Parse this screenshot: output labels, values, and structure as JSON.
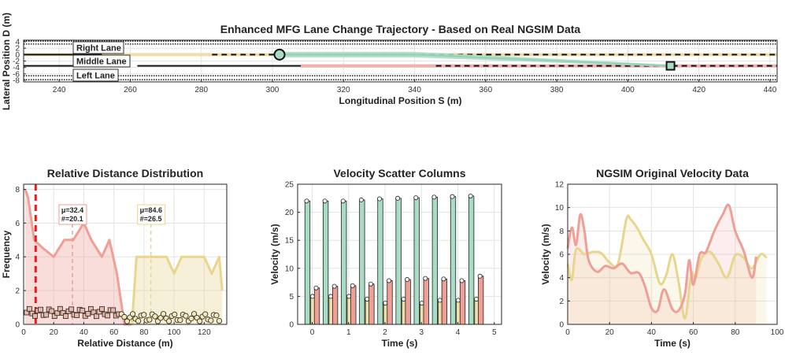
{
  "chart_data": [
    {
      "id": "traj",
      "type": "line",
      "title": "Enhanced MFG Lane Change Trajectory - Based on Real NGSIM Data",
      "xlabel": "Longitudinal Position S (m)",
      "ylabel": "Lateral Position D (m)",
      "xlim": [
        230,
        442
      ],
      "ylim": [
        -8.5,
        4.5
      ],
      "xticks": [
        240,
        260,
        280,
        300,
        320,
        340,
        360,
        380,
        400,
        420,
        440
      ],
      "yticks": [
        4,
        2,
        0,
        -2,
        -4,
        -6,
        -8
      ],
      "lane_labels": [
        "Right Lane",
        "Middle Lane",
        "Left Lane"
      ],
      "lanes": [
        {
          "name": "Right Lane",
          "d": 0,
          "s_from": 230,
          "s_to": 442,
          "color": "#f0deaa"
        },
        {
          "name": "Left Lane",
          "d": -3.5,
          "s_from": 308,
          "s_to": 442,
          "color": "#f2b2ab"
        }
      ],
      "trajectory": {
        "s": [
          302,
          340,
          412
        ],
        "d": [
          0,
          0,
          -3.5
        ],
        "color": "#a9dcc4"
      },
      "start": {
        "s": 302,
        "d": 0
      },
      "end": {
        "s": 412,
        "d": -3.5
      }
    },
    {
      "id": "dist",
      "type": "area",
      "title": "Relative Distance Distribution",
      "xlabel": "Relative Distance (m)",
      "ylabel": "Frequency",
      "xlim": [
        0,
        135
      ],
      "ylim": [
        0,
        8.3
      ],
      "xticks": [
        0,
        20,
        40,
        60,
        80,
        100,
        120
      ],
      "yticks": [
        0,
        2,
        4,
        6,
        8
      ],
      "series": [
        {
          "name": "red",
          "color": "#ee9f96",
          "x": [
            1,
            3,
            7,
            13,
            20,
            27,
            33,
            40,
            45,
            52,
            57,
            62,
            67,
            72
          ],
          "y": [
            8,
            7.5,
            5,
            4.5,
            4,
            5,
            5,
            6,
            5,
            4,
            5,
            3,
            0,
            0
          ]
        },
        {
          "name": "yellow",
          "color": "#e8d58e",
          "x": [
            72,
            75,
            80,
            85,
            95,
            100,
            105,
            110,
            120,
            125,
            130,
            132
          ],
          "y": [
            0,
            4,
            4,
            4,
            4,
            3,
            4,
            4,
            4,
            3,
            4,
            2
          ]
        }
      ],
      "threshold": 8,
      "annotations": [
        {
          "x": 32.4,
          "line1": "μ=32.4",
          "line2": "#=20.1",
          "color": "#ee9f96"
        },
        {
          "x": 84.6,
          "line1": "μ=84.6",
          "line2": "#=26.5",
          "color": "#e8d58e"
        }
      ],
      "scatter": {
        "x_from": 2,
        "x_to": 130,
        "count": 70
      }
    },
    {
      "id": "vel",
      "type": "bar",
      "title": "Velocity Scatter Columns",
      "xlabel": "Time (s)",
      "ylabel": "Velocity (m/s)",
      "xlim": [
        -0.4,
        5.2
      ],
      "ylim": [
        0,
        25
      ],
      "xticks": [
        0,
        1,
        2,
        3,
        4,
        5
      ],
      "yticks": [
        0,
        5,
        10,
        15,
        20,
        25
      ],
      "times": [
        0,
        0.5,
        1,
        1.5,
        2,
        2.5,
        3,
        3.5,
        4,
        4.5
      ],
      "series": [
        {
          "name": "green",
          "color": "#a9dcc4",
          "values": [
            22,
            22,
            22,
            22.2,
            22.4,
            22.5,
            22.6,
            22.7,
            22.8,
            22.9
          ]
        },
        {
          "name": "yellow",
          "color": "#f0deaa",
          "values": [
            5,
            5,
            5,
            4.5,
            3.8,
            4.5,
            3.8,
            4.3,
            4.3,
            4.5
          ]
        },
        {
          "name": "red",
          "color": "#ee9f96",
          "values": [
            6.5,
            6.8,
            6.9,
            7.2,
            7.8,
            8,
            8.2,
            8.1,
            7.8,
            8.6
          ]
        }
      ]
    },
    {
      "id": "ngsim",
      "type": "line",
      "title": "NGSIM Original Velocity Data",
      "xlabel": "Time (s)",
      "ylabel": "Velocity (m/s)",
      "xlim": [
        0,
        100
      ],
      "ylim": [
        0,
        12
      ],
      "xticks": [
        0,
        20,
        40,
        60,
        80,
        100
      ],
      "yticks": [
        0,
        2,
        4,
        6,
        8,
        10,
        12
      ],
      "series": [
        {
          "name": "red",
          "color": "#ee9f96",
          "x": [
            0,
            2,
            4,
            6,
            8,
            10,
            14,
            18,
            22,
            26,
            30,
            34,
            37,
            40,
            43,
            46,
            50,
            53,
            56,
            58,
            60,
            63,
            66,
            70,
            74,
            77,
            80,
            84,
            88,
            90
          ],
          "y": [
            6.5,
            8.3,
            6.8,
            9.4,
            8,
            5.5,
            4.5,
            5,
            4.8,
            5.2,
            4.4,
            4.4,
            3.2,
            1.4,
            1.2,
            3,
            1.3,
            1.2,
            2.6,
            5.5,
            3.4,
            6,
            6.2,
            8,
            9.4,
            10.2,
            8,
            6.3,
            4,
            5.8
          ]
        },
        {
          "name": "yellow",
          "color": "#e8d58e",
          "x": [
            0,
            2,
            4,
            8,
            12,
            16,
            20,
            24,
            28,
            30,
            33,
            36,
            40,
            44,
            47,
            50,
            53,
            56,
            59,
            61,
            64,
            68,
            72,
            76,
            80,
            84,
            88,
            92,
            95
          ],
          "y": [
            5.2,
            3.8,
            6.4,
            6,
            6.2,
            6.1,
            5.3,
            5.2,
            9,
            9,
            8.3,
            7.3,
            6,
            3.5,
            4.2,
            6,
            3.6,
            0.5,
            4.3,
            3.9,
            5.7,
            6.2,
            5.2,
            4,
            5.9,
            5.7,
            4.8,
            6,
            5.7
          ]
        }
      ]
    }
  ]
}
